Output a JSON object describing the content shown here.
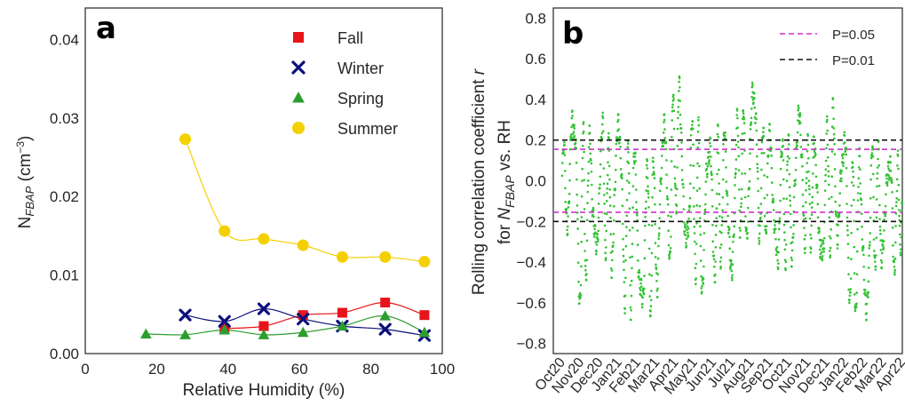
{
  "chart_data": [
    {
      "panel": "a",
      "type": "scatter",
      "xlabel": "Relative Humidity (%)",
      "ylabel_parts": [
        "N",
        "FBAP",
        " (cm",
        "−3",
        ")"
      ],
      "xlim": [
        0,
        100
      ],
      "ylim": [
        0,
        0.044
      ],
      "xticks": [
        "0",
        "20",
        "40",
        "60",
        "80",
        "100"
      ],
      "xtick_values": [
        0,
        20,
        40,
        60,
        80,
        100
      ],
      "yticks": [
        "0.00",
        "0.01",
        "0.02",
        "0.03",
        "0.04"
      ],
      "ytick_values": [
        0,
        0.01,
        0.02,
        0.03,
        0.04
      ],
      "grid": false,
      "legend_position": "top-right",
      "series": [
        {
          "name": "Fall",
          "marker": "square",
          "color": "#e8141b",
          "x": [
            39,
            50,
            61,
            72,
            84,
            95
          ],
          "y": [
            0.0032,
            0.0035,
            0.0049,
            0.0052,
            0.0065,
            0.0049
          ]
        },
        {
          "name": "Winter",
          "marker": "x",
          "color": "#0a0f7a",
          "x": [
            28,
            39,
            50,
            61,
            72,
            84,
            95
          ],
          "y": [
            0.0049,
            0.0041,
            0.0057,
            0.0044,
            0.0035,
            0.0031,
            0.0023
          ]
        },
        {
          "name": "Spring",
          "marker": "triangle",
          "color": "#2d9e2d",
          "x": [
            17,
            28,
            39,
            50,
            61,
            72,
            84,
            95
          ],
          "y": [
            0.0025,
            0.0024,
            0.003,
            0.0024,
            0.0027,
            0.0035,
            0.0048,
            0.0027
          ]
        },
        {
          "name": "Summer",
          "marker": "circle",
          "color": "#f5d000",
          "x": [
            28,
            39,
            50,
            61,
            72,
            84,
            95
          ],
          "y": [
            0.0273,
            0.0156,
            0.0146,
            0.0138,
            0.0123,
            0.0123,
            0.0117
          ]
        }
      ]
    },
    {
      "panel": "b",
      "type": "scatter",
      "ylabel_line1_parts": [
        "Rolling correlation coefficient ",
        "r"
      ],
      "ylabel_line2_parts": [
        "for ",
        "N",
        "FBAP",
        " vs.  RH"
      ],
      "ylim": [
        -0.85,
        0.85
      ],
      "yticks": [
        "−0.8",
        "−0.6",
        "−0.4",
        "−0.2",
        "0.0",
        "0.2",
        "0.4",
        "0.6",
        "0.8"
      ],
      "ytick_values": [
        -0.8,
        -0.6,
        -0.4,
        -0.2,
        0.0,
        0.2,
        0.4,
        0.6,
        0.8
      ],
      "xticks": [
        "Oct20",
        "Nov20",
        "Dec20",
        "Jan21",
        "Feb21",
        "Mar21",
        "Apr21",
        "May21",
        "Jun21",
        "Jul21",
        "Aug21",
        "Sep21",
        "Oct21",
        "Nov21",
        "Dec21",
        "Jan22",
        "Feb22",
        "Mar22",
        "Apr22"
      ],
      "grid": false,
      "legend_position": "top-right",
      "point_color": "#33c233",
      "reference_lines": [
        {
          "name": "P=0.05",
          "color": "#cc33cc",
          "values": [
            0.155,
            -0.155
          ]
        },
        {
          "name": "P=0.01",
          "color": "#111111",
          "values": [
            0.2,
            -0.2
          ]
        }
      ],
      "monthly_profile": {
        "x_month_index": [
          0,
          0.5,
          1,
          1.5,
          2,
          2.5,
          3,
          3.5,
          4,
          4.5,
          5,
          5.5,
          6,
          6.5,
          7,
          7.5,
          8,
          8.5,
          9,
          9.5,
          10,
          10.5,
          11,
          11.5,
          12,
          12.5,
          13,
          13.5,
          14,
          14.5,
          15,
          15.5,
          16,
          16.5,
          17,
          17.5,
          18
        ],
        "r_max": [
          0.15,
          0.4,
          0.3,
          0.25,
          0.38,
          0.25,
          0.3,
          0.3,
          0.25,
          0.2,
          0.22,
          0.3,
          0.58,
          0.42,
          0.3,
          0.25,
          0.22,
          0.25,
          0.3,
          0.38,
          0.56,
          0.35,
          0.3,
          0.28,
          0.3,
          0.35,
          0.25,
          0.25,
          0.32,
          0.44,
          0.2,
          0.1,
          0.15,
          0.2,
          0.18,
          0.15,
          0.12
        ],
        "r_min": [
          -0.1,
          -0.5,
          -0.78,
          -0.4,
          -0.3,
          -0.45,
          -0.5,
          -0.68,
          -0.6,
          -0.78,
          -0.55,
          -0.6,
          -0.2,
          -0.3,
          -0.55,
          -0.68,
          -0.6,
          -0.45,
          -0.45,
          -0.3,
          -0.4,
          -0.3,
          -0.3,
          -0.45,
          -0.4,
          -0.35,
          -0.3,
          -0.4,
          -0.5,
          -0.3,
          -0.65,
          -0.8,
          -0.7,
          -0.55,
          -0.45,
          -0.55,
          -0.3
        ]
      }
    }
  ]
}
